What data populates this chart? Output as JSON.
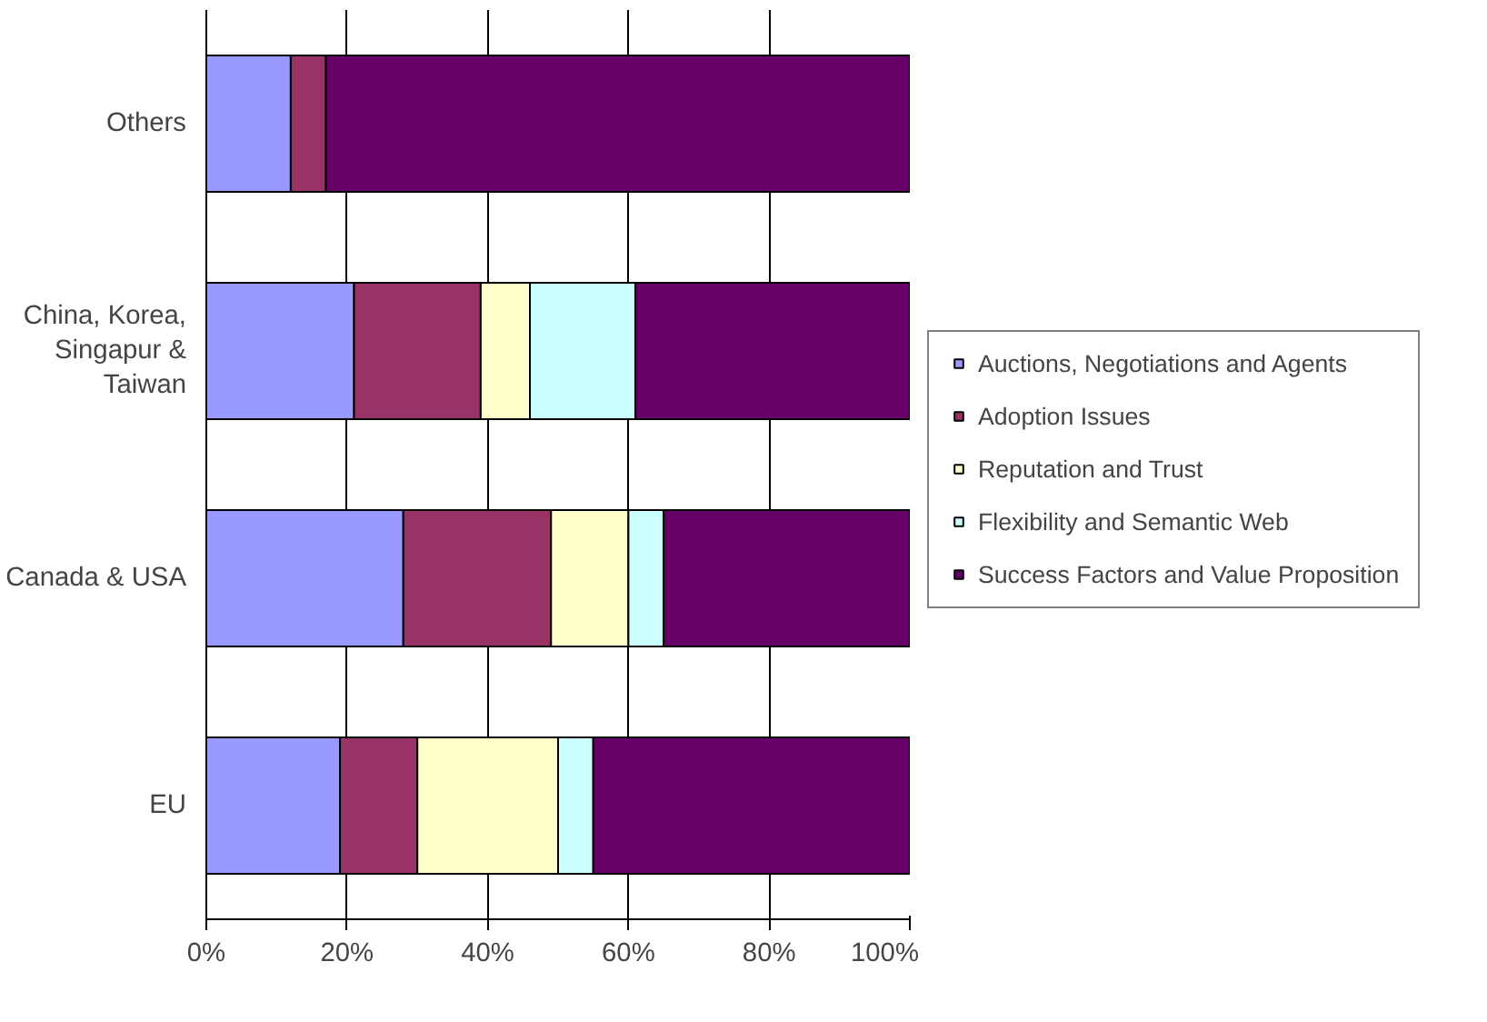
{
  "chart_data": {
    "type": "bar",
    "orientation": "horizontal",
    "stacked": true,
    "categories": [
      "Others",
      "China, Korea, Singapur & Taiwan",
      "Canada & USA",
      "EU"
    ],
    "series": [
      {
        "name": "Auctions, Negotiations and Agents",
        "color": "#9999ff",
        "values": [
          12,
          21,
          28,
          19
        ]
      },
      {
        "name": "Adoption Issues",
        "color": "#993366",
        "values": [
          5,
          18,
          21,
          11
        ]
      },
      {
        "name": "Reputation and Trust",
        "color": "#ffffcc",
        "values": [
          null,
          7,
          11,
          20
        ]
      },
      {
        "name": "Flexibility and Semantic Web",
        "color": "#ccffff",
        "values": [
          null,
          15,
          5,
          5
        ]
      },
      {
        "name": "Success Factors and Value Proposition",
        "color": "#660066",
        "values": [
          83,
          39,
          35,
          45
        ]
      }
    ],
    "xlim": [
      0,
      100
    ],
    "xticks": [
      {
        "value": 0,
        "label": "0%"
      },
      {
        "value": 20,
        "label": "20%"
      },
      {
        "value": 40,
        "label": "40%"
      },
      {
        "value": 60,
        "label": "60%"
      },
      {
        "value": 80,
        "label": "80%"
      },
      {
        "value": 100,
        "label": "100%"
      }
    ],
    "grid": "x",
    "legend": "right"
  }
}
